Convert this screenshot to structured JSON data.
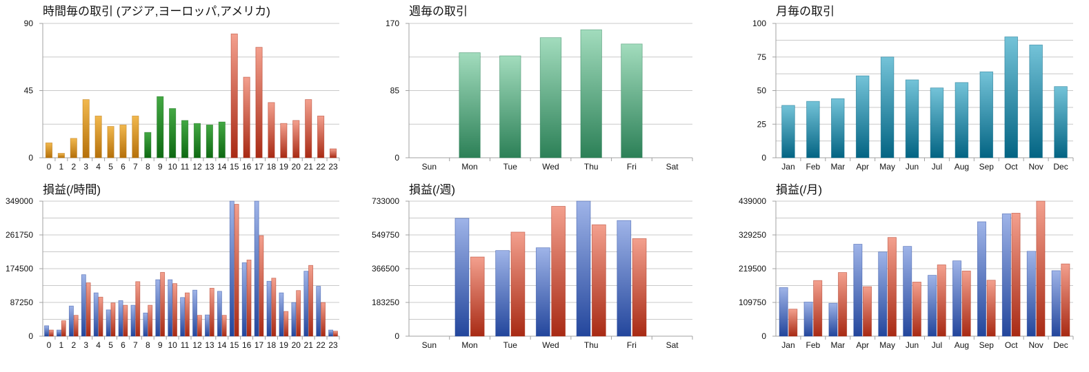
{
  "colors": {
    "orange": [
      "#f1b84e",
      "#b5700a"
    ],
    "green": [
      "#43a843",
      "#0e6912"
    ],
    "red": [
      "#f3a08e",
      "#a82a14"
    ],
    "mint": [
      "#a2dcbd",
      "#2c8057"
    ],
    "teal": [
      "#74c3d8",
      "#036483"
    ],
    "blue": [
      "#9fb4e8",
      "#23469c"
    ],
    "grid": "#c8c8c8",
    "axis": "#a0a0a0"
  },
  "chart_data": [
    {
      "type": "bar",
      "title": "時間毎の取引 (アジア,ヨーロッパ,アメリカ)",
      "categories": [
        "0",
        "1",
        "2",
        "3",
        "4",
        "5",
        "6",
        "7",
        "8",
        "9",
        "10",
        "11",
        "12",
        "13",
        "14",
        "15",
        "16",
        "17",
        "18",
        "19",
        "20",
        "21",
        "22",
        "23"
      ],
      "yticks": [
        "0",
        "45",
        "90"
      ],
      "ylim": [
        0,
        90
      ],
      "grid": true,
      "series": [
        {
          "values": [
            10,
            3,
            13,
            39,
            28,
            21,
            22,
            28,
            17,
            41,
            33,
            25,
            23,
            22,
            24,
            83,
            54,
            74,
            37,
            23,
            25,
            39,
            28,
            6
          ],
          "colors": [
            "orange",
            "orange",
            "orange",
            "orange",
            "orange",
            "orange",
            "orange",
            "orange",
            "green",
            "green",
            "green",
            "green",
            "green",
            "green",
            "green",
            "red",
            "red",
            "red",
            "red",
            "red",
            "red",
            "red",
            "red",
            "red"
          ]
        }
      ]
    },
    {
      "type": "bar",
      "title": "週毎の取引",
      "categories": [
        "Sun",
        "Mon",
        "Tue",
        "Wed",
        "Thu",
        "Fri",
        "Sat"
      ],
      "yticks": [
        "0",
        "85",
        "170"
      ],
      "ylim": [
        0,
        170
      ],
      "grid": true,
      "series": [
        {
          "values": [
            0,
            133,
            129,
            152,
            162,
            144,
            0
          ],
          "color": "mint"
        }
      ]
    },
    {
      "type": "bar",
      "title": "月毎の取引",
      "categories": [
        "Jan",
        "Feb",
        "Mar",
        "Apr",
        "May",
        "Jun",
        "Jul",
        "Aug",
        "Sep",
        "Oct",
        "Nov",
        "Dec"
      ],
      "yticks": [
        "0",
        "25",
        "50",
        "75",
        "100"
      ],
      "ylim": [
        0,
        100
      ],
      "grid": true,
      "series": [
        {
          "values": [
            39,
            42,
            44,
            61,
            75,
            58,
            52,
            56,
            64,
            90,
            84,
            53
          ],
          "color": "teal"
        }
      ]
    },
    {
      "type": "bar",
      "title": "損益(/時間)",
      "categories": [
        "0",
        "1",
        "2",
        "3",
        "4",
        "5",
        "6",
        "7",
        "8",
        "9",
        "10",
        "11",
        "12",
        "13",
        "14",
        "15",
        "16",
        "17",
        "18",
        "19",
        "20",
        "21",
        "22",
        "23"
      ],
      "yticks": [
        "0",
        "87250",
        "174500",
        "261750",
        "349000"
      ],
      "ylim": [
        0,
        349000
      ],
      "grid": true,
      "series": [
        {
          "values": [
            27000,
            16000,
            78000,
            159000,
            112000,
            68000,
            92000,
            80000,
            60000,
            146000,
            146000,
            100000,
            119000,
            55000,
            116000,
            349000,
            190000,
            349000,
            142000,
            112000,
            87000,
            168000,
            129000,
            16000
          ],
          "color": "blue"
        },
        {
          "values": [
            16000,
            40000,
            54000,
            138000,
            101000,
            86000,
            80000,
            141000,
            80000,
            165000,
            136000,
            112000,
            54000,
            124000,
            54000,
            341000,
            197000,
            260000,
            150000,
            64000,
            118000,
            183000,
            87000,
            13000
          ],
          "color": "red"
        }
      ]
    },
    {
      "type": "bar",
      "title": "損益(/週)",
      "categories": [
        "Sun",
        "Mon",
        "Tue",
        "Wed",
        "Thu",
        "Fri",
        "Sat"
      ],
      "yticks": [
        "0",
        "183250",
        "366500",
        "549750",
        "733000"
      ],
      "ylim": [
        0,
        733000
      ],
      "grid": true,
      "series": [
        {
          "values": [
            0,
            640000,
            465000,
            480000,
            733000,
            628000,
            0
          ],
          "color": "blue"
        },
        {
          "values": [
            0,
            430000,
            565000,
            705000,
            605000,
            530000,
            0
          ],
          "color": "red"
        }
      ]
    },
    {
      "type": "bar",
      "title": "損益(/月)",
      "categories": [
        "Jan",
        "Feb",
        "Mar",
        "Apr",
        "May",
        "Jun",
        "Jul",
        "Aug",
        "Sep",
        "Oct",
        "Nov",
        "Dec"
      ],
      "yticks": [
        "0",
        "109750",
        "219500",
        "329250",
        "439000"
      ],
      "ylim": [
        0,
        439000
      ],
      "grid": true,
      "series": [
        {
          "values": [
            158000,
            111000,
            107000,
            299000,
            274000,
            292000,
            198000,
            245000,
            372000,
            398000,
            276000,
            213000
          ],
          "color": "blue"
        },
        {
          "values": [
            88000,
            181000,
            207000,
            161000,
            321000,
            176000,
            232000,
            212000,
            182000,
            400000,
            439000,
            235000
          ],
          "color": "red"
        }
      ]
    }
  ]
}
